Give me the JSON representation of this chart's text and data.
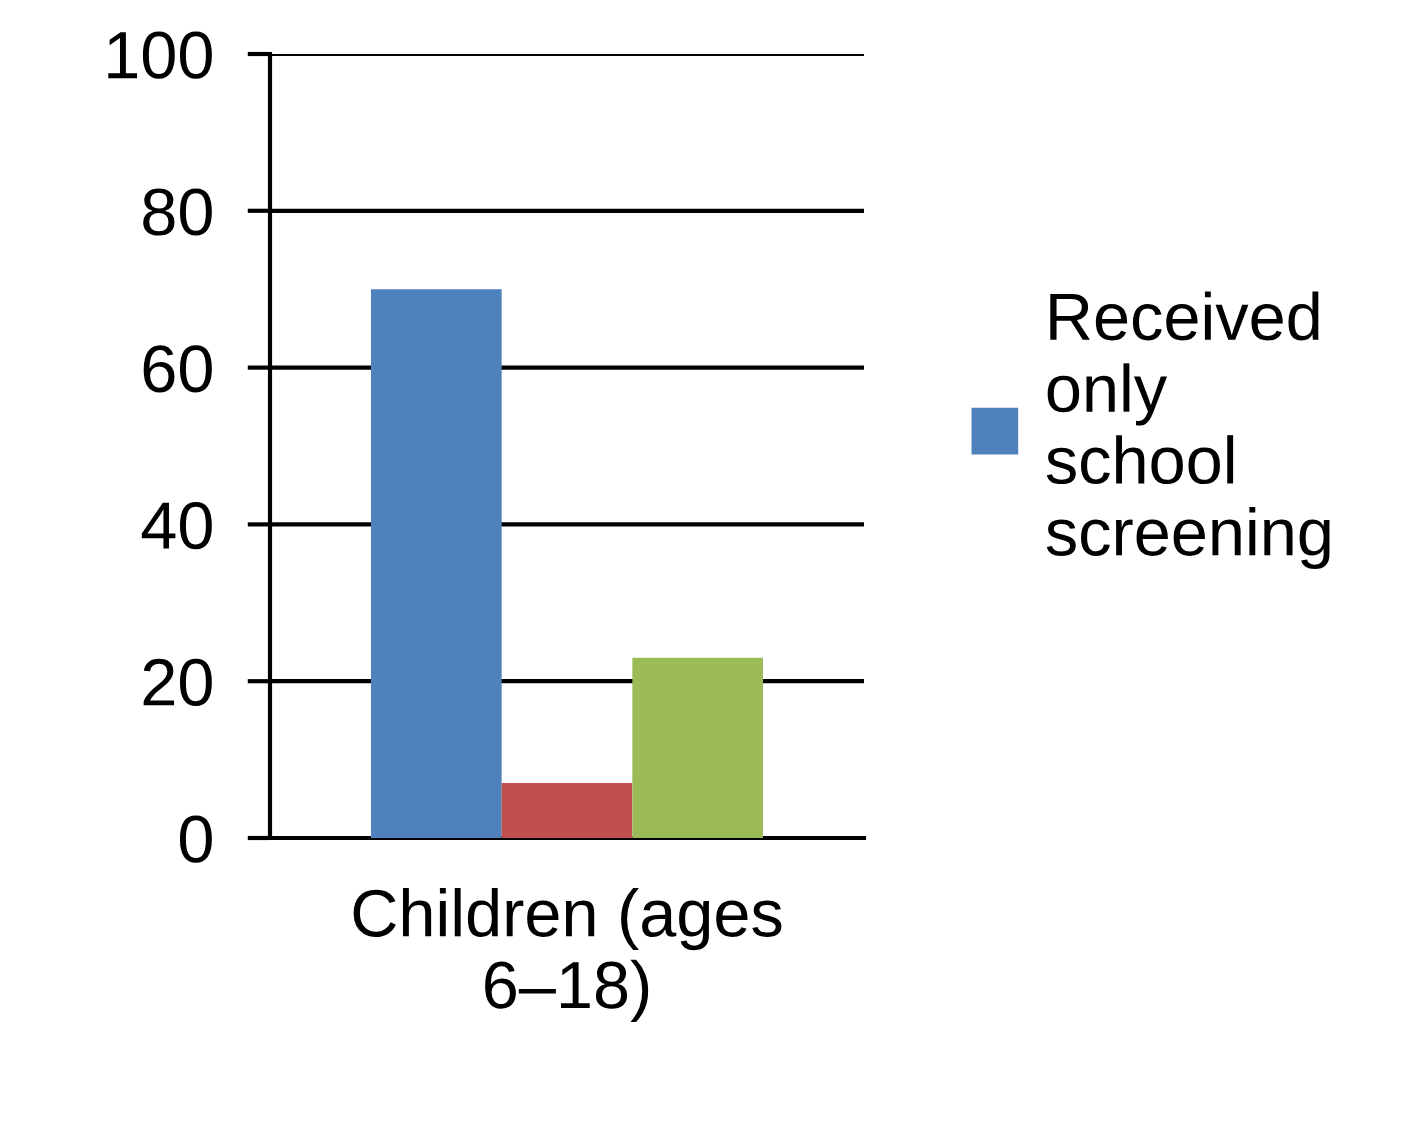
{
  "chart_data": {
    "type": "bar",
    "categories": [
      "Children (ages\n6–18)"
    ],
    "series": [
      {
        "name": "Received\nonly\nschool\nscreening",
        "color": "#4f81bd",
        "values": [
          70
        ]
      },
      {
        "color": "#c0504d",
        "values": [
          7
        ]
      },
      {
        "color": "#9bbb59",
        "values": [
          23
        ]
      }
    ],
    "ylim": [
      0,
      100
    ],
    "yticks": [
      0,
      20,
      40,
      60,
      80,
      100
    ],
    "grid": "y",
    "legend": "right"
  }
}
